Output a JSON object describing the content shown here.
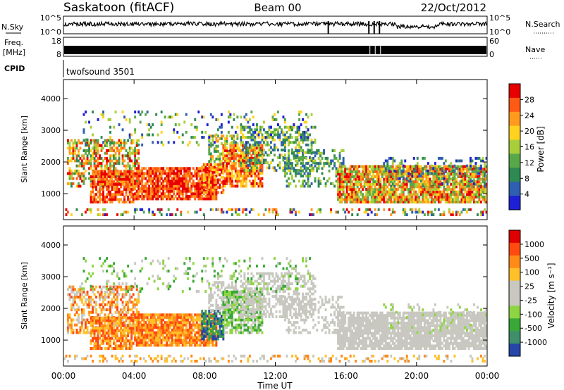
{
  "header": {
    "title": "Saskatoon (fitACF)",
    "beam": "Beam 00",
    "date": "22/Oct/2012"
  },
  "top_panels": {
    "nsky_label": "N.Sky",
    "nsky_ticks": [
      "10^5",
      "10^0"
    ],
    "nsearch_label": "N.Search",
    "nsearch_ticks": [
      "10^5",
      "10^0"
    ],
    "freq_label_1": "Freq.",
    "freq_label_2": "[MHz]",
    "freq_ticks": [
      "18",
      "8"
    ],
    "nave_label": "Nave",
    "nave_ticks": [
      "60",
      "0"
    ],
    "cpid_label": "CPID",
    "cpid_value": "twofsound 3501"
  },
  "colors": {
    "power": [
      "#1f1fd6",
      "#2f5fb0",
      "#2e8a52",
      "#58a84a",
      "#a8cf3a",
      "#ffd21e",
      "#ff9a1e",
      "#ff5a14",
      "#e80000"
    ],
    "velocity": [
      "#2646a8",
      "#3f8f6b",
      "#39a837",
      "#8ed641",
      "#c8c8c0",
      "#c8c8c0",
      "#ffc02a",
      "#ff8a18",
      "#ff4a10",
      "#e00000"
    ]
  },
  "chart_data": [
    {
      "type": "heatmap",
      "name": "power",
      "ylabel": "Slant Range [km]",
      "yticks": [
        "1000",
        "2000",
        "3000",
        "4000"
      ],
      "ylim": [
        180,
        4600
      ],
      "xlim": [
        0,
        24
      ],
      "colorbar_label": "Power [dB]",
      "colorbar_ticks": [
        "4",
        "8",
        "12",
        "16",
        "20",
        "24",
        "28"
      ],
      "colorbar_range": [
        0,
        32
      ]
    },
    {
      "type": "heatmap",
      "name": "velocity",
      "ylabel": "Slant Range [km]",
      "yticks": [
        "1000",
        "2000",
        "3000",
        "4000"
      ],
      "ylim": [
        180,
        4600
      ],
      "xlim": [
        0,
        24
      ],
      "colorbar_label": "Velocity [m s⁻¹]",
      "colorbar_ticks": [
        "1000",
        "500",
        "100",
        "25",
        "-25",
        "-100",
        "-500",
        "-1000"
      ]
    }
  ],
  "x_axis": {
    "ticks": [
      "00:00",
      "04:00",
      "08:00",
      "12:00",
      "16:00",
      "20:00",
      "00:00"
    ],
    "label": "Time UT"
  }
}
